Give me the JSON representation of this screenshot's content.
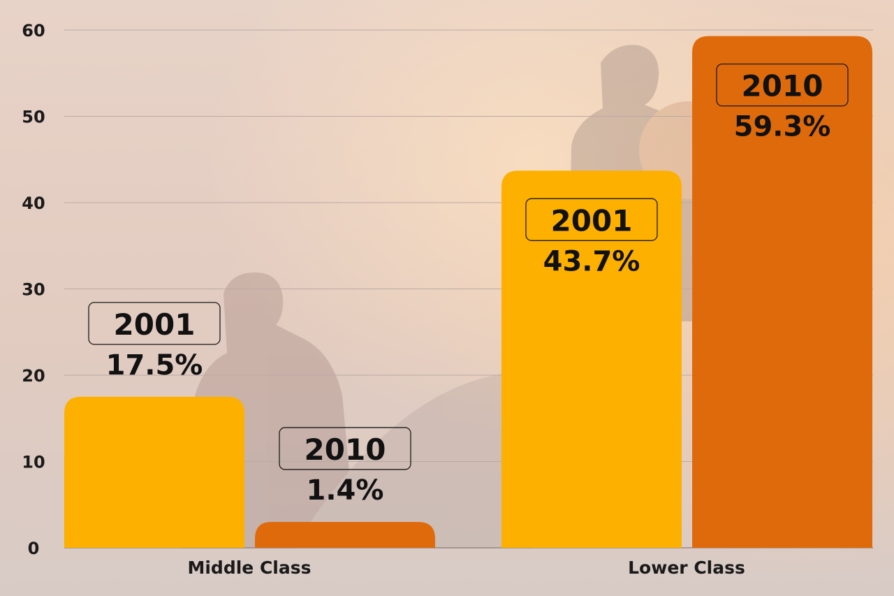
{
  "chart_data": {
    "type": "bar",
    "categories": [
      "Middle Class",
      "Lower Class"
    ],
    "series": [
      {
        "years": [
          "2001",
          "2001"
        ],
        "values": [
          17.5,
          43.7
        ],
        "labels": [
          "17.5%",
          "43.7%"
        ]
      },
      {
        "years": [
          "2010",
          "2010"
        ],
        "values": [
          1.4,
          59.3
        ],
        "labels": [
          "1.4%",
          "59.3%"
        ]
      }
    ],
    "yticks": [
      "0",
      "10",
      "20",
      "30",
      "40",
      "50",
      "60"
    ],
    "ylim": [
      0,
      60
    ],
    "grid": true,
    "colors": {
      "series_2001": "#FDB000",
      "series_2010": "#DF6A0C",
      "grid": "#b9aaa4",
      "text": "#111111"
    }
  }
}
